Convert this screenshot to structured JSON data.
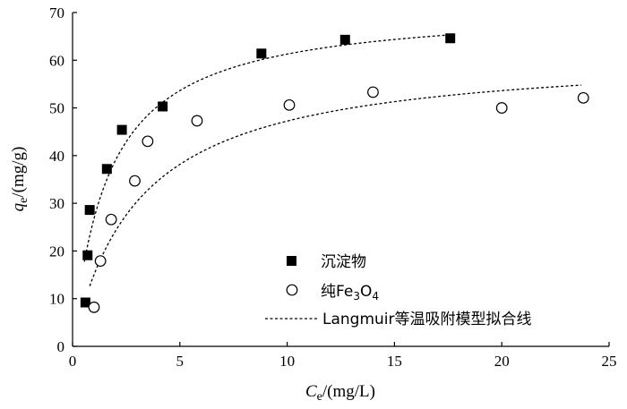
{
  "chart_data": {
    "type": "scatter",
    "xlabel": {
      "main": "C",
      "sub": "e",
      "rest": "/(mg/L)"
    },
    "ylabel": {
      "main": "q",
      "sub": "e",
      "rest": "/(mg/g)"
    },
    "xlim": [
      0,
      25
    ],
    "ylim": [
      0,
      70
    ],
    "xticks": [
      0,
      5,
      10,
      15,
      20,
      25
    ],
    "yticks": [
      0,
      10,
      20,
      30,
      40,
      50,
      60,
      70
    ],
    "grid": false,
    "legend_position": "lower-right",
    "series": [
      {
        "name": "沉淀物",
        "marker": "filled-square",
        "x": [
          0.6,
          0.7,
          0.8,
          1.6,
          2.3,
          4.2,
          8.8,
          12.7,
          17.6
        ],
        "y": [
          9.2,
          19.1,
          28.6,
          37.2,
          45.4,
          50.3,
          61.4,
          64.3,
          64.6
        ]
      },
      {
        "name_parts": [
          "纯Fe",
          "3",
          "O",
          "4"
        ],
        "marker": "open-circle",
        "x": [
          1.0,
          1.3,
          1.8,
          2.9,
          3.5,
          5.8,
          10.1,
          14.0,
          20.0,
          23.8
        ],
        "y": [
          8.2,
          17.9,
          26.6,
          34.7,
          43.0,
          47.3,
          50.6,
          53.3,
          50.0,
          52.1
        ]
      }
    ],
    "fit": {
      "name": "Langmuir等温吸附模型拟合线",
      "style": "dashed",
      "curves": [
        {
          "for_series": 0,
          "qmax": 71.5,
          "KL": 0.6,
          "x_range": [
            0.55,
            17.5
          ]
        },
        {
          "for_series": 1,
          "qmax": 62.0,
          "KL": 0.32,
          "x_range": [
            0.8,
            23.7
          ]
        }
      ]
    }
  }
}
